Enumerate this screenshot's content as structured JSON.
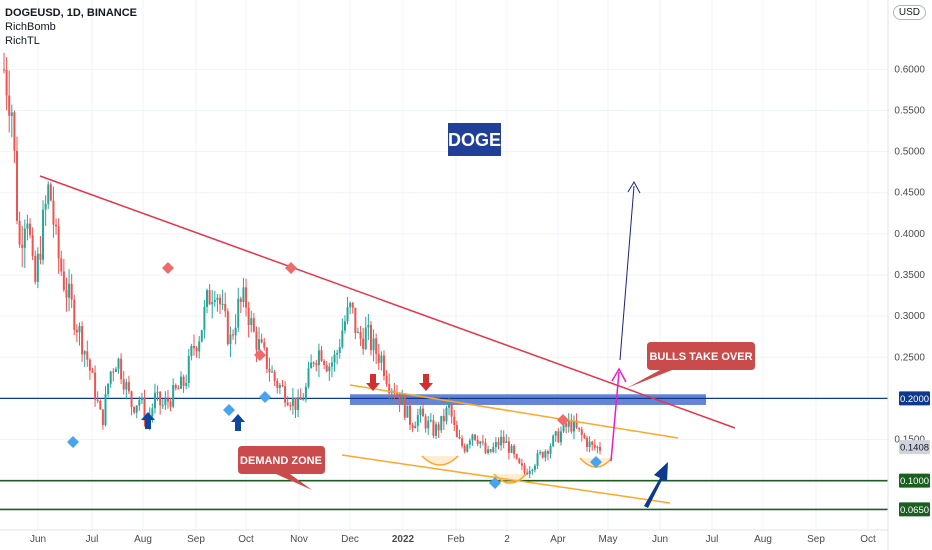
{
  "header": {
    "symbol_line": "DOGEUSD, 1D, BINANCE",
    "indicators": [
      "RichBomb",
      "RichTL"
    ],
    "currency": "USD"
  },
  "colors": {
    "bull": "#26a69a",
    "bear": "#ef5350",
    "trendline": "#e8334a",
    "channel": "#ffa726",
    "support": "#0d3a8c",
    "demand_line": "#1b5e20",
    "zone": "#4a6ed1",
    "callout": "#c94b4b",
    "projection": "#1a237e",
    "pink_arrow": "#e91ec9",
    "doge_label_bg": "#1f3f99"
  },
  "chart_data": {
    "type": "candlestick",
    "x_ticks": [
      "Jun",
      "Jul",
      "Aug",
      "Sep",
      "Oct",
      "Nov",
      "Dec",
      "2022",
      "Feb",
      "2",
      "Apr",
      "May",
      "Jun",
      "Jul",
      "Aug",
      "Sep",
      "Oct"
    ],
    "y_ticks": [
      "0.6000",
      "0.5500",
      "0.5000",
      "0.4500",
      "0.4000",
      "0.3500",
      "0.3000",
      "0.2500",
      "0.1500"
    ],
    "y_range": [
      0.04,
      0.66
    ],
    "price_labels": [
      {
        "value": 0.2,
        "text": "0.2000",
        "color": "#0d3a8c"
      },
      {
        "value": 0.1408,
        "text": "0.1408",
        "color": "#d1d4dc"
      },
      {
        "value": 0.1,
        "text": "0.1000",
        "color": "#1b5e20"
      },
      {
        "value": 0.065,
        "text": "0.0650",
        "color": "#1b5e20"
      }
    ],
    "horizontal_lines": [
      {
        "value": 0.2,
        "name": "support",
        "color": "#0d3a8c"
      },
      {
        "value": 0.1,
        "name": "demand",
        "color": "#1b5e20"
      },
      {
        "value": 0.065,
        "name": "lower-demand",
        "color": "#1b5e20"
      }
    ],
    "resistance_zone": {
      "from": 0.192,
      "to": 0.205,
      "start": "Dec",
      "end": "Jun"
    },
    "annotations": [
      {
        "text": "DOGE",
        "kind": "title-box"
      },
      {
        "text": "BULLS TAKE OVER",
        "kind": "callout"
      },
      {
        "text": "DEMAND ZONE",
        "kind": "callout"
      }
    ],
    "candles_path": [
      [
        0,
        0.6
      ],
      [
        1,
        0.56
      ],
      [
        2,
        0.38
      ],
      [
        3,
        0.44
      ],
      [
        4,
        0.33
      ],
      [
        5,
        0.4
      ],
      [
        6,
        0.46
      ],
      [
        7,
        0.38
      ],
      [
        8,
        0.34
      ],
      [
        9,
        0.31
      ],
      [
        10,
        0.28
      ],
      [
        11,
        0.25
      ],
      [
        12,
        0.21
      ],
      [
        13,
        0.17
      ],
      [
        14,
        0.23
      ],
      [
        15,
        0.25
      ],
      [
        16,
        0.22
      ],
      [
        17,
        0.19
      ],
      [
        18,
        0.2
      ],
      [
        19,
        0.17
      ],
      [
        20,
        0.2
      ],
      [
        21,
        0.19
      ],
      [
        22,
        0.2
      ],
      [
        23,
        0.21
      ],
      [
        24,
        0.22
      ],
      [
        25,
        0.26
      ],
      [
        26,
        0.28
      ],
      [
        27,
        0.32
      ],
      [
        28,
        0.34
      ],
      [
        29,
        0.3
      ],
      [
        30,
        0.27
      ],
      [
        31,
        0.31
      ],
      [
        32,
        0.32
      ],
      [
        33,
        0.28
      ],
      [
        34,
        0.26
      ],
      [
        35,
        0.24
      ],
      [
        36,
        0.22
      ],
      [
        37,
        0.21
      ],
      [
        38,
        0.2
      ],
      [
        39,
        0.19
      ],
      [
        40,
        0.21
      ],
      [
        41,
        0.25
      ],
      [
        42,
        0.26
      ],
      [
        43,
        0.24
      ],
      [
        44,
        0.25
      ],
      [
        45,
        0.29
      ],
      [
        46,
        0.31
      ],
      [
        47,
        0.27
      ],
      [
        48,
        0.28
      ],
      [
        49,
        0.26
      ],
      [
        50,
        0.25
      ],
      [
        51,
        0.22
      ],
      [
        52,
        0.21
      ],
      [
        53,
        0.19
      ],
      [
        54,
        0.17
      ],
      [
        55,
        0.18
      ],
      [
        56,
        0.17
      ],
      [
        57,
        0.16
      ],
      [
        58,
        0.17
      ],
      [
        59,
        0.19
      ],
      [
        60,
        0.15
      ],
      [
        61,
        0.14
      ],
      [
        62,
        0.16
      ],
      [
        63,
        0.15
      ],
      [
        64,
        0.13
      ],
      [
        65,
        0.14
      ],
      [
        66,
        0.15
      ],
      [
        67,
        0.14
      ],
      [
        68,
        0.12
      ],
      [
        69,
        0.11
      ],
      [
        70,
        0.12
      ],
      [
        71,
        0.13
      ],
      [
        72,
        0.14
      ],
      [
        73,
        0.15
      ],
      [
        74,
        0.16
      ],
      [
        75,
        0.17
      ],
      [
        76,
        0.16
      ],
      [
        77,
        0.15
      ],
      [
        78,
        0.14
      ],
      [
        79,
        0.14
      ]
    ]
  }
}
